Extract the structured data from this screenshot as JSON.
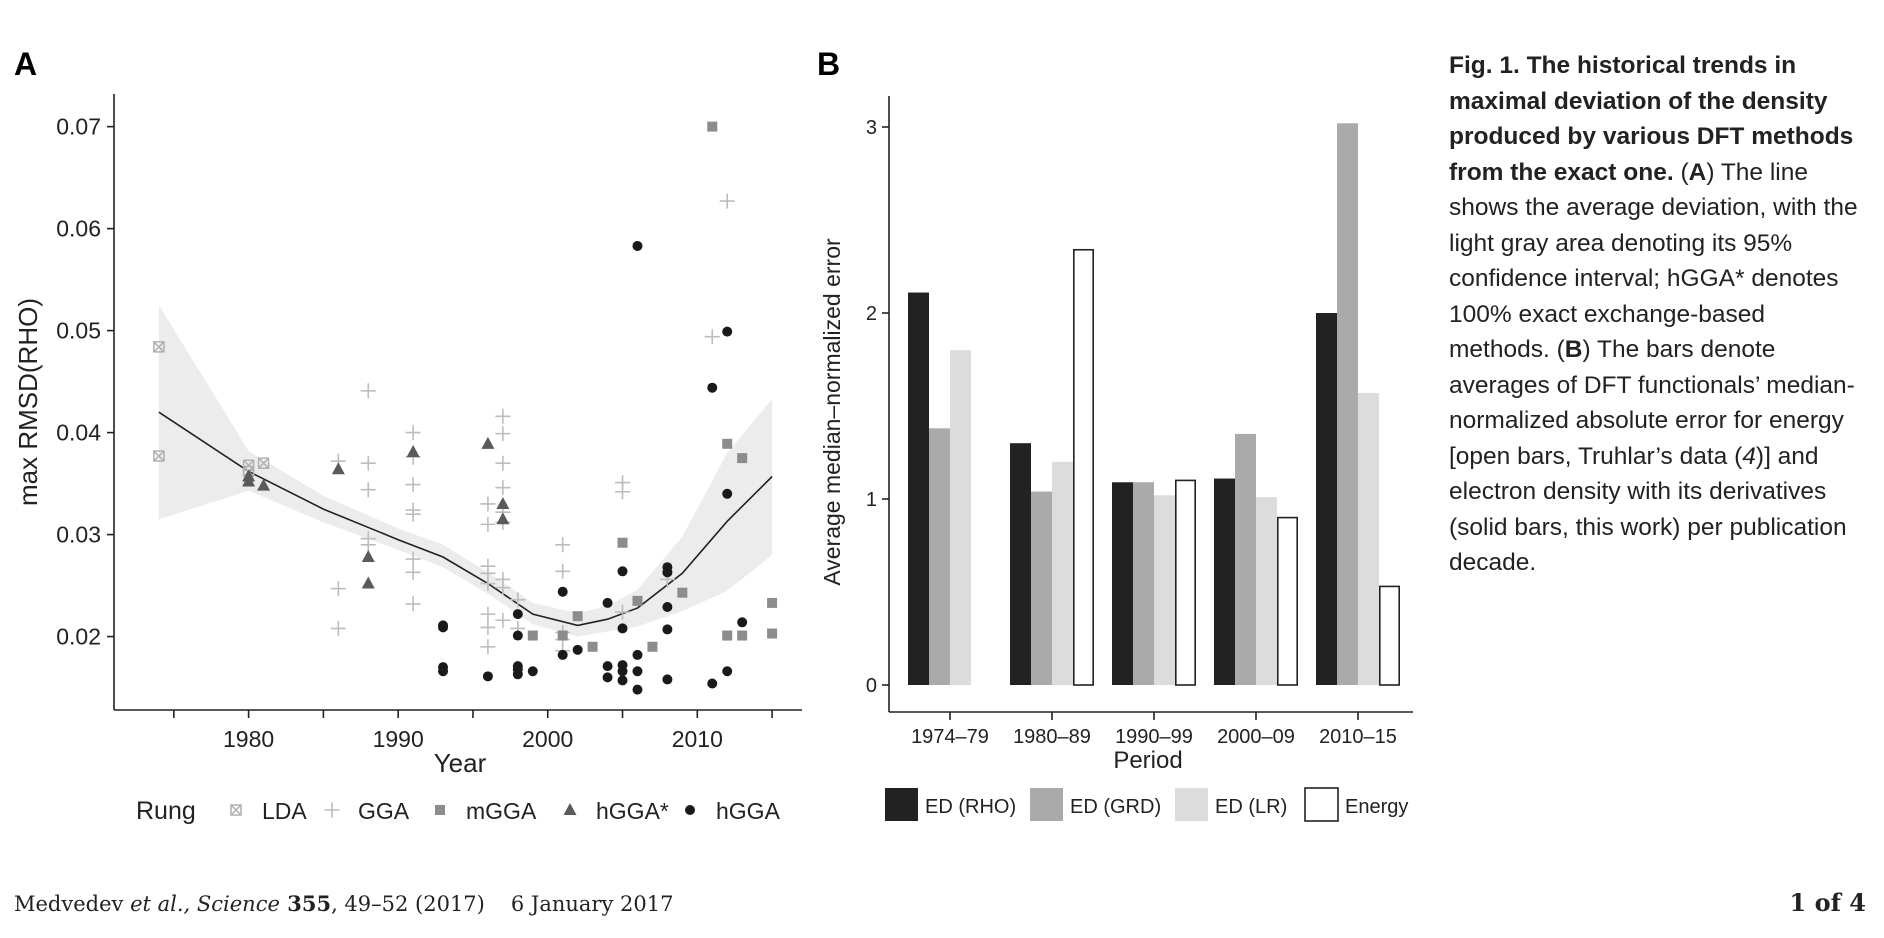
{
  "panelA": {
    "letter": "A",
    "xlabel": "Year",
    "ylabel": "max RMSD(RHO)",
    "xticks": [
      1980,
      1990,
      2000,
      2010
    ],
    "yticks": [
      "0.02",
      "0.03",
      "0.04",
      "0.05",
      "0.06",
      "0.07"
    ],
    "legend_title": "Rung",
    "legend": [
      "LDA",
      "GGA",
      "mGGA",
      "hGGA*",
      "hGGA"
    ]
  },
  "panelB": {
    "letter": "B",
    "xlabel": "Period",
    "ylabel": "Average median–normalized error",
    "yticks": [
      "0",
      "1",
      "2",
      "3"
    ],
    "legend": [
      "ED (RHO)",
      "ED (GRD)",
      "ED (LR)",
      "Energy"
    ]
  },
  "caption": {
    "title": "Fig. 1. The historical trends in maximal deviation of the density produced by various DFT methods from the exact one.",
    "pA_open": " (",
    "pA_letter": "A",
    "pA_text": ") The line shows the average deviation, with the light gray area denoting its 95% confidence interval; hGGA* denotes 100% exact exchange-based methods. (",
    "pB_letter": "B",
    "pB_text": ") The bars denote averages of DFT functionals’ median-normalized absolute error for energy [open bars, Truhlar’s data (",
    "ref": "4",
    "pB_end": ")] and electron density with its derivatives (solid bars, this work) per publication decade."
  },
  "footer": {
    "authors": "Medvedev",
    "etal": " et al., ",
    "journal": "Science",
    "volume": " 355",
    "pages": ", 49–52 (2017)",
    "date": "6 January 2017",
    "page": "1 of 4"
  },
  "chart_data": [
    {
      "type": "scatter",
      "xlabel": "Year",
      "ylabel": "max RMSD(RHO)",
      "xlim": [
        1971,
        2017
      ],
      "ylim": [
        0.0128,
        0.0732
      ],
      "legend_title": "Rung",
      "legend_position": "bottom",
      "series": [
        {
          "name": "LDA",
          "marker": "square-x",
          "color": "#b0b0b0",
          "points": [
            [
              1974,
              0.0484
            ],
            [
              1974,
              0.0377
            ],
            [
              1980,
              0.0362
            ],
            [
              1980,
              0.0368
            ],
            [
              1981,
              0.037
            ]
          ]
        },
        {
          "name": "GGA",
          "marker": "plus",
          "color": "#bdbdbd",
          "points": [
            [
              1986,
              0.0372
            ],
            [
              1986,
              0.0247
            ],
            [
              1986,
              0.0208
            ],
            [
              1988,
              0.0441
            ],
            [
              1988,
              0.037
            ],
            [
              1988,
              0.0344
            ],
            [
              1988,
              0.0296
            ],
            [
              1988,
              0.029
            ],
            [
              1991,
              0.04
            ],
            [
              1991,
              0.0376
            ],
            [
              1991,
              0.0349
            ],
            [
              1991,
              0.0324
            ],
            [
              1991,
              0.032
            ],
            [
              1991,
              0.0276
            ],
            [
              1991,
              0.0263
            ],
            [
              1991,
              0.0232
            ],
            [
              1996,
              0.0269
            ],
            [
              1996,
              0.0262
            ],
            [
              1996,
              0.0252
            ],
            [
              1996,
              0.0222
            ],
            [
              1996,
              0.0209
            ],
            [
              1996,
              0.019
            ],
            [
              1996,
              0.033
            ],
            [
              1996,
              0.031
            ],
            [
              1997,
              0.0416
            ],
            [
              1997,
              0.0399
            ],
            [
              1997,
              0.037
            ],
            [
              1997,
              0.0346
            ],
            [
              1997,
              0.0322
            ],
            [
              1997,
              0.0312
            ],
            [
              1997,
              0.0256
            ],
            [
              1997,
              0.0248
            ],
            [
              1997,
              0.0216
            ],
            [
              1998,
              0.0236
            ],
            [
              1998,
              0.0208
            ],
            [
              2001,
              0.029
            ],
            [
              2001,
              0.0264
            ],
            [
              2001,
              0.0204
            ],
            [
              2001,
              0.0197
            ],
            [
              2001,
              0.0186
            ],
            [
              2005,
              0.0351
            ],
            [
              2005,
              0.0342
            ],
            [
              2005,
              0.0224
            ],
            [
              2008,
              0.0256
            ],
            [
              2011,
              0.0494
            ],
            [
              2012,
              0.0627
            ]
          ]
        },
        {
          "name": "mGGA",
          "marker": "square",
          "color": "#8c8c8c",
          "points": [
            [
              1999,
              0.0201
            ],
            [
              2001,
              0.0201
            ],
            [
              2002,
              0.022
            ],
            [
              2003,
              0.019
            ],
            [
              2005,
              0.0292
            ],
            [
              2006,
              0.0235
            ],
            [
              2007,
              0.019
            ],
            [
              2009,
              0.0243
            ],
            [
              2011,
              0.07
            ],
            [
              2012,
              0.0389
            ],
            [
              2012,
              0.0201
            ],
            [
              2013,
              0.0375
            ],
            [
              2013,
              0.0201
            ],
            [
              2015,
              0.0233
            ],
            [
              2015,
              0.0203
            ]
          ]
        },
        {
          "name": "hGGA*",
          "marker": "triangle",
          "color": "#5a5a5a",
          "points": [
            [
              1980,
              0.0357
            ],
            [
              1980,
              0.0352
            ],
            [
              1981,
              0.0348
            ],
            [
              1986,
              0.0364
            ],
            [
              1988,
              0.0278
            ],
            [
              1988,
              0.0252
            ],
            [
              1991,
              0.0381
            ],
            [
              1996,
              0.0389
            ],
            [
              1997,
              0.033
            ],
            [
              1997,
              0.0315
            ]
          ]
        },
        {
          "name": "hGGA",
          "marker": "circle",
          "color": "#1a1a1a",
          "points": [
            [
              1993,
              0.0211
            ],
            [
              1993,
              0.0209
            ],
            [
              1993,
              0.017
            ],
            [
              1993,
              0.0166
            ],
            [
              1996,
              0.0161
            ],
            [
              1998,
              0.0222
            ],
            [
              1998,
              0.0201
            ],
            [
              1998,
              0.0171
            ],
            [
              1998,
              0.0168
            ],
            [
              1998,
              0.0163
            ],
            [
              1999,
              0.0166
            ],
            [
              2001,
              0.0244
            ],
            [
              2001,
              0.0182
            ],
            [
              2002,
              0.0187
            ],
            [
              2004,
              0.0233
            ],
            [
              2004,
              0.0171
            ],
            [
              2004,
              0.016
            ],
            [
              2005,
              0.0157
            ],
            [
              2005,
              0.0166
            ],
            [
              2005,
              0.0264
            ],
            [
              2005,
              0.0172
            ],
            [
              2005,
              0.0208
            ],
            [
              2006,
              0.0583
            ],
            [
              2006,
              0.0182
            ],
            [
              2006,
              0.0166
            ],
            [
              2006,
              0.0148
            ],
            [
              2008,
              0.0268
            ],
            [
              2008,
              0.0263
            ],
            [
              2008,
              0.0229
            ],
            [
              2008,
              0.0207
            ],
            [
              2008,
              0.0158
            ],
            [
              2011,
              0.0444
            ],
            [
              2011,
              0.0154
            ],
            [
              2012,
              0.0499
            ],
            [
              2012,
              0.034
            ],
            [
              2012,
              0.0166
            ],
            [
              2013,
              0.0214
            ]
          ]
        }
      ],
      "trend": {
        "x": [
          1974,
          1980,
          1985,
          1990,
          1993,
          1996,
          1999,
          2002,
          2004,
          2006,
          2009,
          2012,
          2015
        ],
        "y": [
          0.042,
          0.0362,
          0.0325,
          0.0295,
          0.0278,
          0.0252,
          0.0222,
          0.0211,
          0.0217,
          0.0228,
          0.0262,
          0.0313,
          0.0357
        ],
        "ci_low": [
          0.0315,
          0.0343,
          0.0312,
          0.0285,
          0.0268,
          0.0242,
          0.0212,
          0.02,
          0.0205,
          0.021,
          0.0225,
          0.0245,
          0.028
        ],
        "ci_high": [
          0.0525,
          0.0382,
          0.0338,
          0.0306,
          0.029,
          0.0263,
          0.0233,
          0.0223,
          0.023,
          0.0246,
          0.0298,
          0.038,
          0.0433
        ]
      }
    },
    {
      "type": "bar",
      "xlabel": "Period",
      "ylabel": "Average median–normalized error",
      "ylim": [
        -0.16,
        3.2
      ],
      "categories": [
        "1974–79",
        "1980–89",
        "1990–99",
        "2000–09",
        "2010–15"
      ],
      "legend_position": "bottom",
      "series": [
        {
          "name": "ED (RHO)",
          "color": "#222222",
          "values": [
            2.11,
            1.3,
            1.09,
            1.11,
            2.0
          ]
        },
        {
          "name": "ED (GRD)",
          "color": "#aaaaaa",
          "values": [
            1.38,
            1.04,
            1.09,
            1.35,
            3.02
          ]
        },
        {
          "name": "ED (LR)",
          "color": "#dcdcdc",
          "values": [
            1.8,
            1.2,
            1.02,
            1.01,
            1.57
          ]
        },
        {
          "name": "Energy",
          "color": "#ffffff",
          "values": [
            null,
            2.34,
            1.1,
            0.9,
            0.53
          ]
        }
      ]
    }
  ]
}
